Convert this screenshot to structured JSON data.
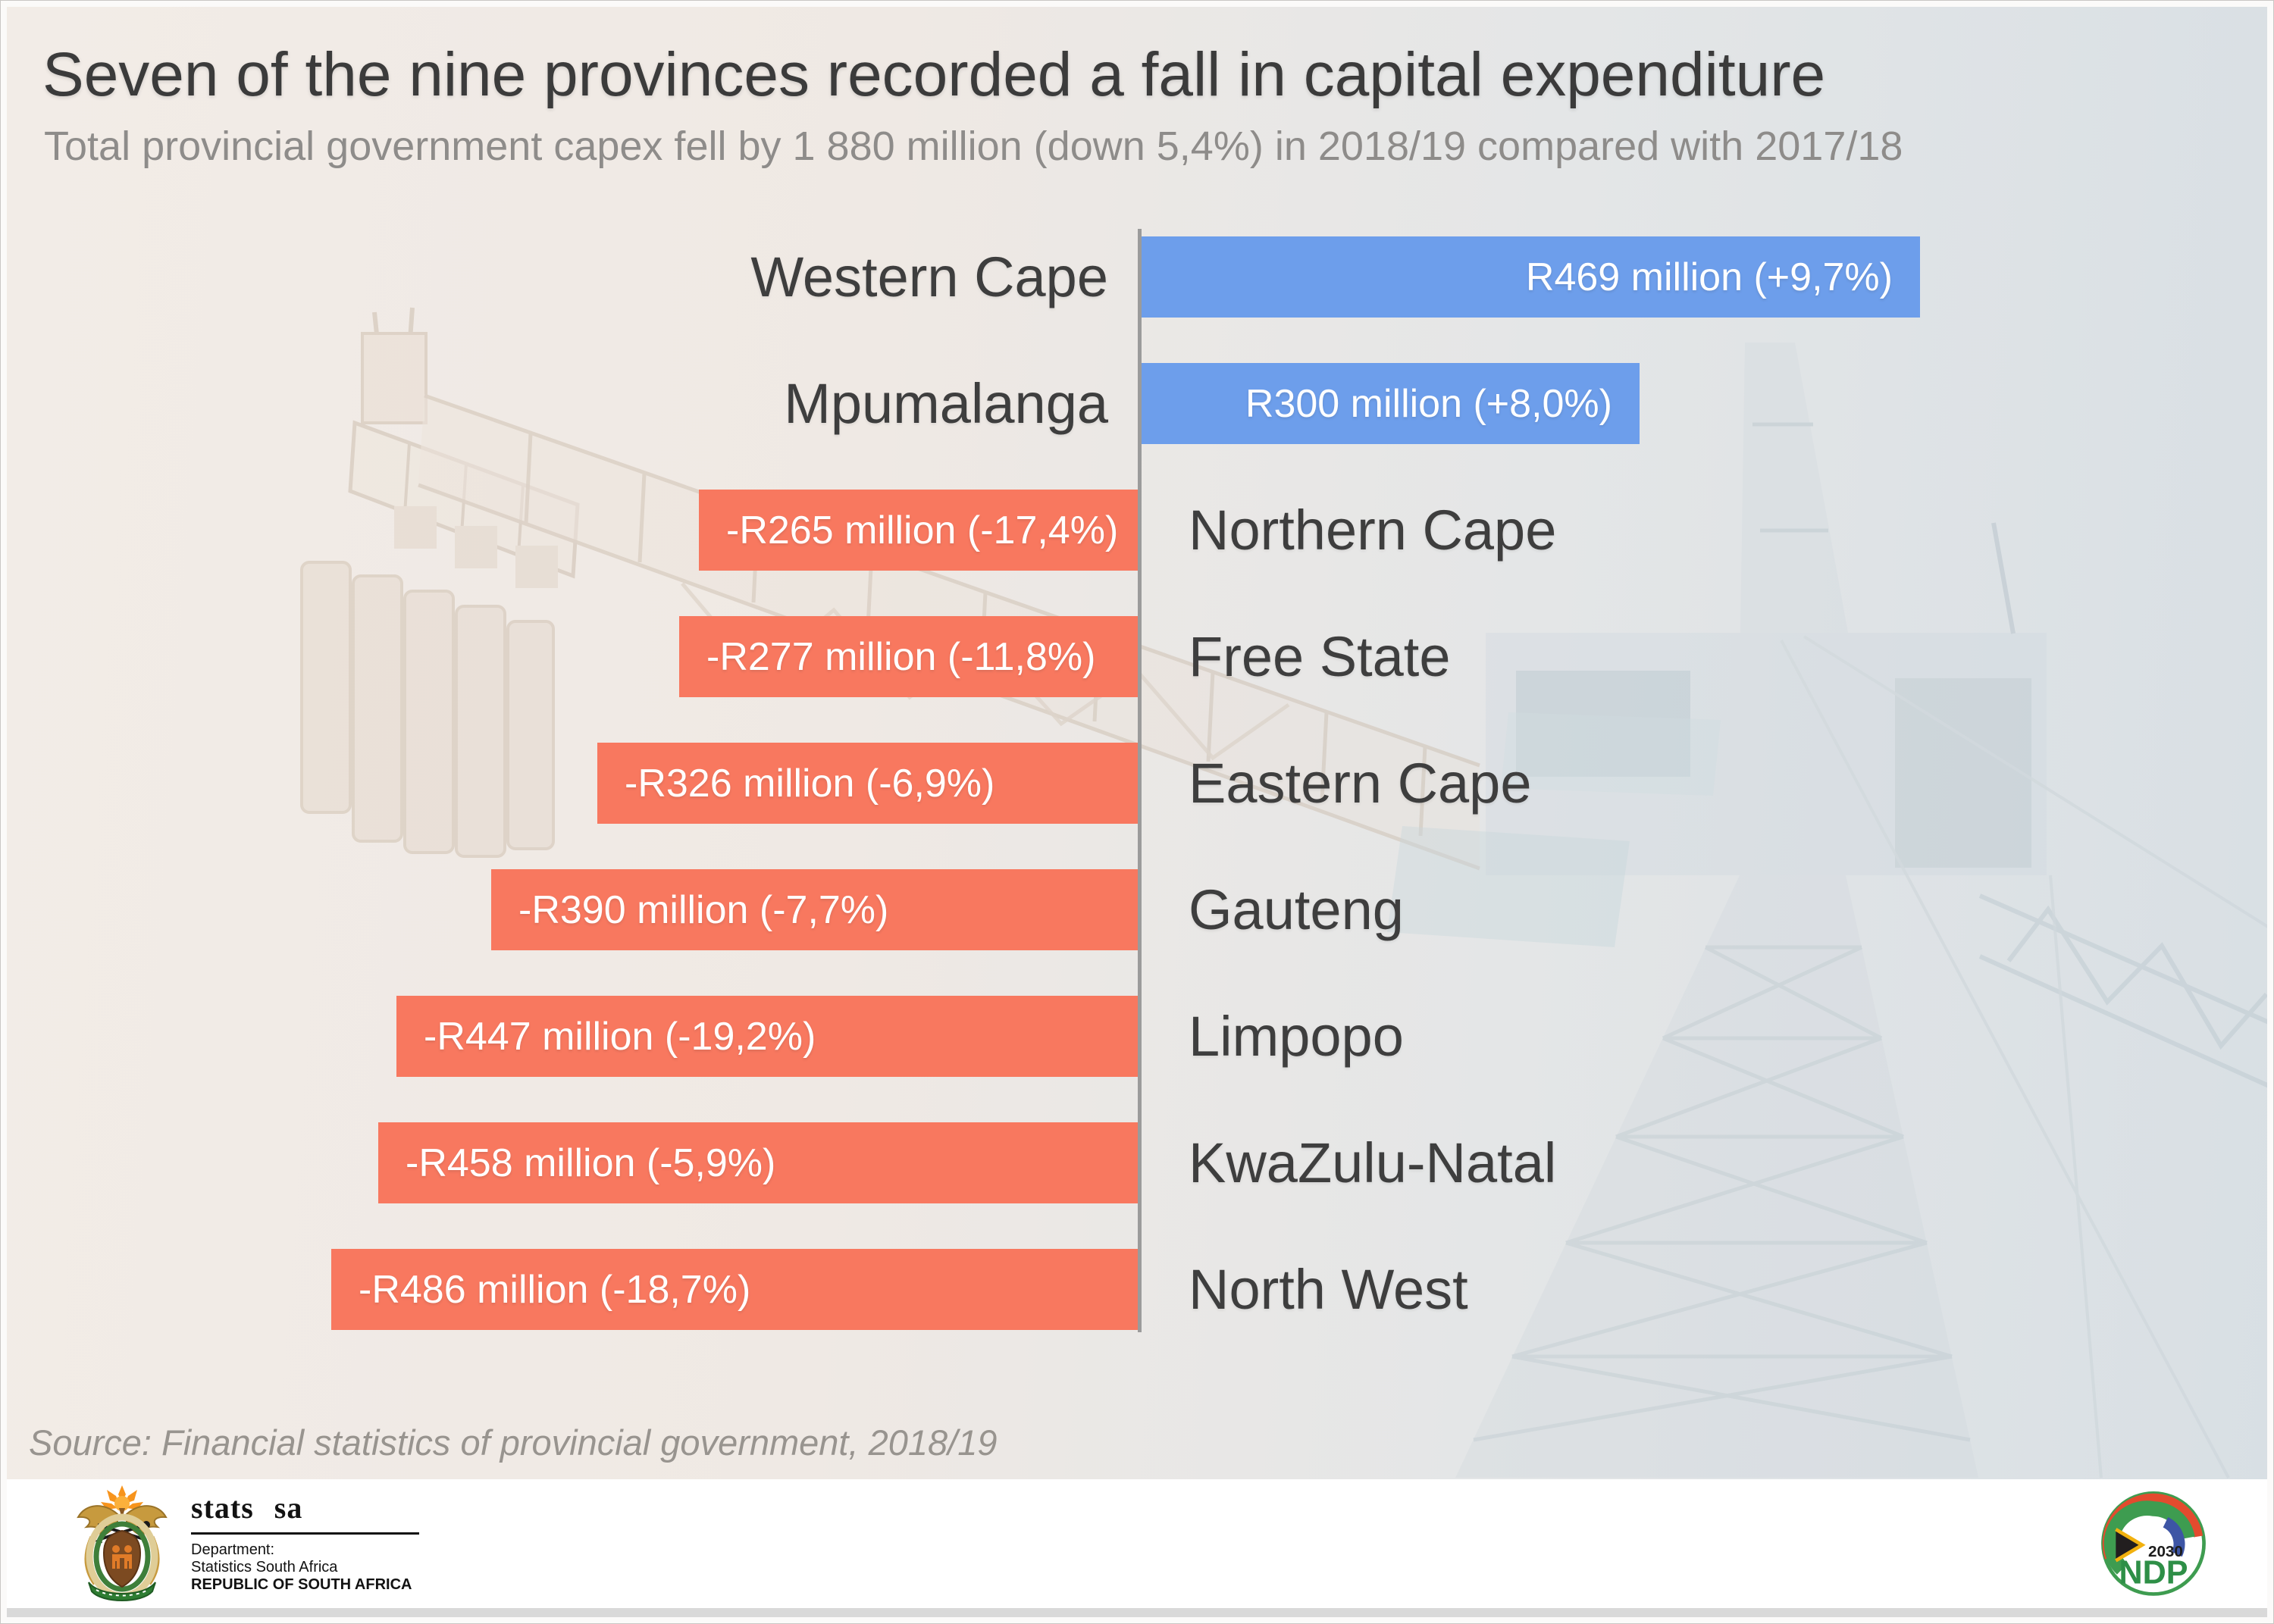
{
  "header": {
    "title": "Seven of the nine provinces recorded a fall in capital expenditure",
    "subtitle": "Total provincial government capex fell by 1 880 million (down 5,4%) in 2018/19 compared with 2017/18"
  },
  "chart_data": {
    "type": "bar",
    "orientation": "horizontal_diverging",
    "unit": "R million",
    "title": "Change in provincial government capital expenditure, 2018/19 vs 2017/18",
    "categories": [
      "Western Cape",
      "Mpumalanga",
      "Northern Cape",
      "Free State",
      "Eastern Cape",
      "Gauteng",
      "Limpopo",
      "KwaZulu-Natal",
      "North West"
    ],
    "values": [
      469,
      300,
      -265,
      -277,
      -326,
      -390,
      -447,
      -458,
      -486
    ],
    "pct_change": [
      "+9,7%",
      "+8,0%",
      "-17,4%",
      "-11,8%",
      "-6,9%",
      "-7,7%",
      "-19,2%",
      "-5,9%",
      "-18,7%"
    ],
    "bar_labels": [
      "R469 million (+9,7%)",
      "R300 million (+8,0%)",
      "-R265 million (-17,4%)",
      "-R277 million (-11,8%)",
      "-R326 million (-6,9%)",
      "-R390 million (-7,7%)",
      "-R447 million (-19,2%)",
      "-R458 million (-5,9%)",
      "-R486 million (-18,7%)"
    ],
    "axis": {
      "baseline_value": 0,
      "gridlines": false,
      "legend": "none"
    },
    "xlim_millions": [
      -500,
      500
    ],
    "colors": {
      "positive": "#6D9EEB",
      "negative": "#F8785F",
      "axis": "#9B9B9B"
    }
  },
  "source_note": "Source: Financial statistics of provincial government, 2018/19",
  "footer": {
    "stats_sa": {
      "logo_text": "stats sa",
      "dept_label": "Department:",
      "dept_name": "Statistics South Africa",
      "country": "REPUBLIC OF SOUTH AFRICA"
    },
    "ndp": {
      "acronym": "NDP",
      "year": "2030"
    }
  }
}
